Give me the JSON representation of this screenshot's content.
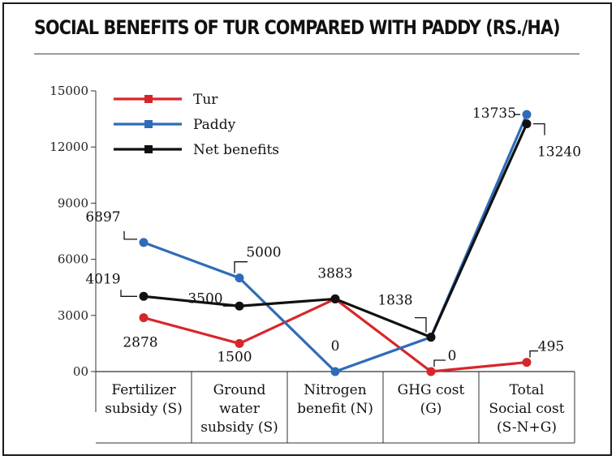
{
  "title": "SOCIAL BENEFITS OF TUR COMPARED WITH PADDY (RS./HA)",
  "chart_data": {
    "type": "line",
    "title": "SOCIAL BENEFITS OF TUR COMPARED WITH PADDY (RS./HA)",
    "categories": [
      [
        "Fertilizer",
        "subsidy (S)"
      ],
      [
        "Ground",
        "water",
        "subsidy (S)"
      ],
      [
        "Nitrogen",
        "benefit (N)"
      ],
      [
        "GHG cost",
        "(G)"
      ],
      [
        "Total",
        "Social cost",
        "(S-N+G)"
      ]
    ],
    "yticks": [
      "00",
      "3000",
      "6000",
      "9000",
      "12000",
      "15000"
    ],
    "ylim": [
      0,
      15000
    ],
    "series": [
      {
        "name": "Tur",
        "color": "#d7262b",
        "values": [
          2878,
          1500,
          3883,
          0,
          495
        ],
        "labels": [
          "2878",
          "1500",
          "",
          "0",
          "495"
        ]
      },
      {
        "name": "Paddy",
        "color": "#2f6cb8",
        "values": [
          6897,
          5000,
          0,
          1838,
          13735
        ],
        "labels": [
          "6897",
          "5000",
          "0",
          "",
          "13735"
        ]
      },
      {
        "name": "Net benefits",
        "color": "#111111",
        "values": [
          4019,
          3500,
          3883,
          1838,
          13240
        ],
        "labels": [
          "4019",
          "3500",
          "3883",
          "1838",
          "13240"
        ]
      }
    ],
    "legend": "top-left"
  }
}
